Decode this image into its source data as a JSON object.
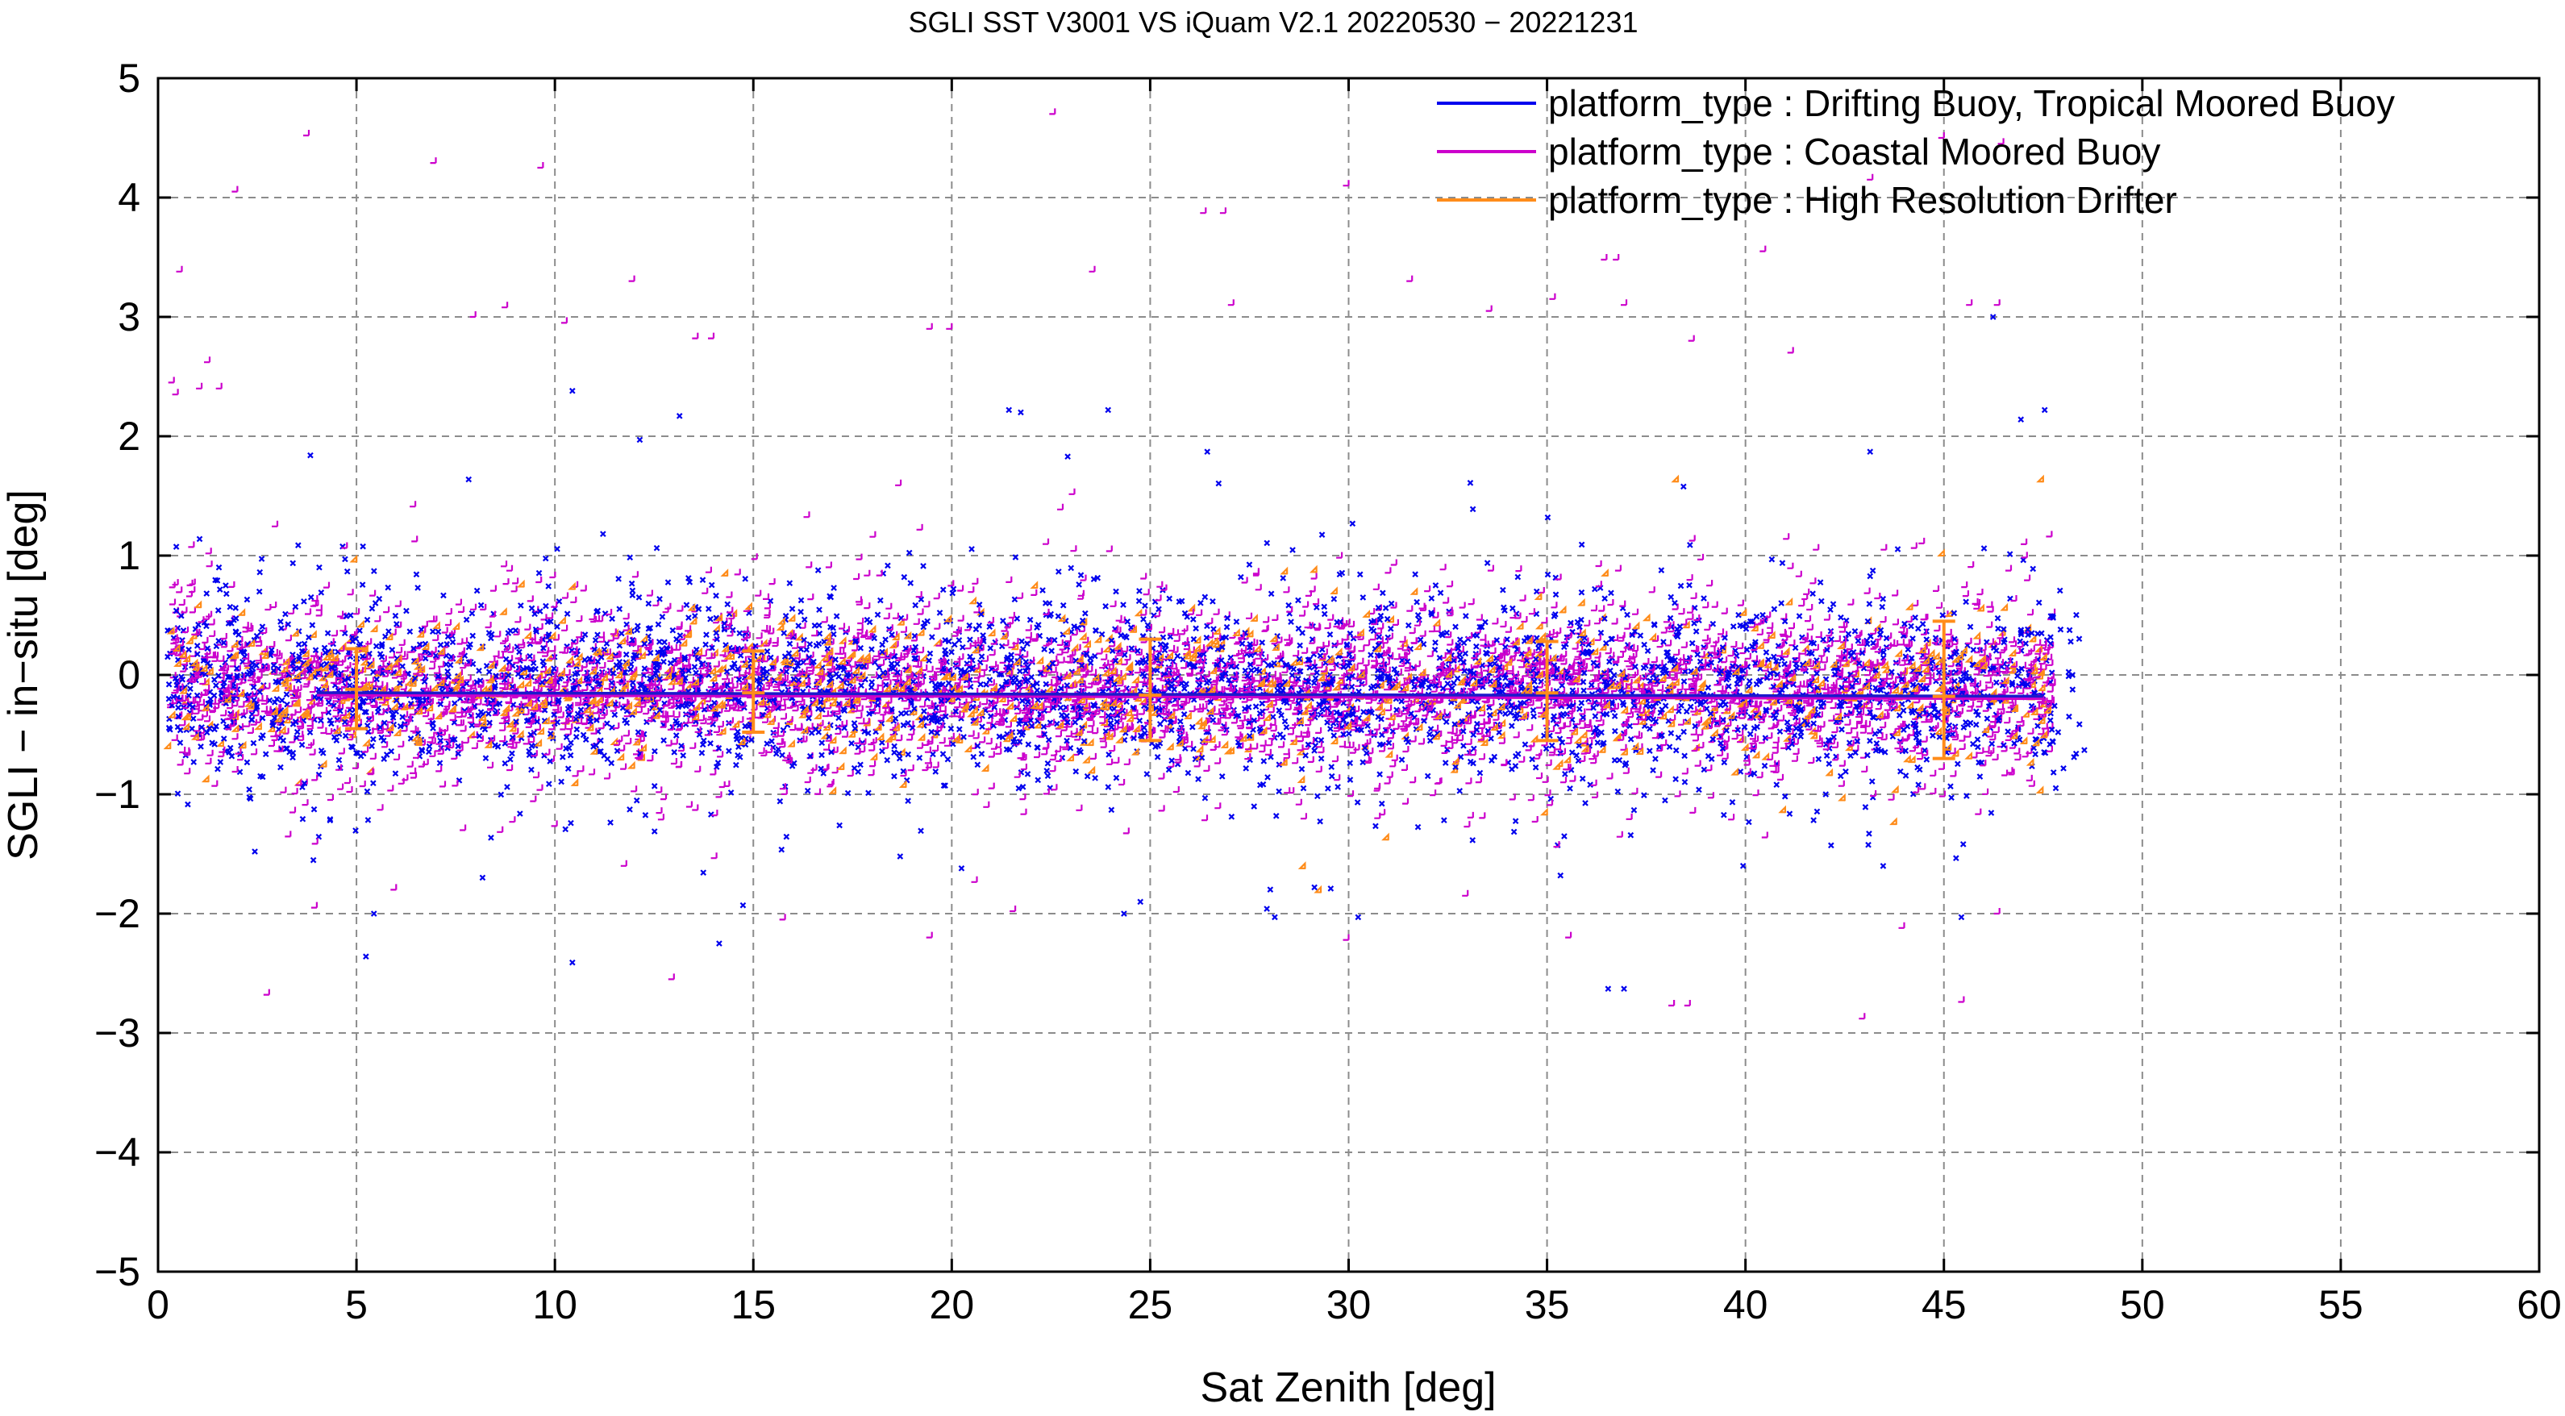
{
  "chart_data": {
    "type": "scatter",
    "title": "SGLI SST V3001 VS iQuam V2.1 20220530 − 20221231",
    "xlabel": "Sat Zenith [deg]",
    "ylabel": "SGLI − in−situ [deg]",
    "xlim": [
      0,
      60
    ],
    "ylim": [
      -5,
      5
    ],
    "xticks": [
      0,
      5,
      10,
      15,
      20,
      25,
      30,
      35,
      40,
      45,
      50,
      55,
      60
    ],
    "yticks": [
      -5,
      -4,
      -3,
      -2,
      -1,
      0,
      1,
      2,
      3,
      4,
      5
    ],
    "xtick_labels": [
      "0",
      "5",
      "10",
      "15",
      "20",
      "25",
      "30",
      "35",
      "40",
      "45",
      "50",
      "55",
      "60"
    ],
    "ytick_labels": [
      "−5",
      "−4",
      "−3",
      "−2",
      "−1",
      "0",
      "1",
      "2",
      "3",
      "4",
      "5"
    ],
    "grid": true,
    "legend_position": "top-right",
    "series": [
      {
        "name": "platform_type : Drifting Buoy, Tropical Moored Buoy",
        "color": "#0000ee",
        "marker": "x",
        "x_range": [
          0.3,
          48.5
        ],
        "spread": 0.55,
        "points": [
          [
            3.9,
            1.82
          ],
          [
            5.5,
            -2.02
          ],
          [
            5.3,
            -2.38
          ],
          [
            10.5,
            2.36
          ],
          [
            10.5,
            -2.43
          ],
          [
            13.2,
            2.15
          ],
          [
            14.2,
            -2.27
          ],
          [
            14.8,
            -1.95
          ],
          [
            21.5,
            2.2
          ],
          [
            21.8,
            2.18
          ],
          [
            24.0,
            2.2
          ],
          [
            24.4,
            -2.02
          ],
          [
            26.5,
            1.85
          ],
          [
            28.0,
            -1.98
          ],
          [
            29.2,
            -1.8
          ],
          [
            36.6,
            -2.65
          ],
          [
            37.0,
            -2.65
          ],
          [
            40.0,
            -1.62
          ],
          [
            43.2,
            1.85
          ],
          [
            45.5,
            -2.05
          ],
          [
            46.3,
            2.98
          ],
          [
            47.0,
            2.12
          ],
          [
            47.6,
            2.2
          ],
          [
            48.0,
            0.36
          ],
          [
            48.3,
            -0.02
          ],
          [
            48.6,
            -0.65
          ],
          [
            28.2,
            -2.05
          ],
          [
            12.2,
            1.95
          ],
          [
            2.5,
            -1.5
          ],
          [
            30.3,
            -2.05
          ]
        ]
      },
      {
        "name": "platform_type : Coastal Moored Buoy",
        "color": "#cc00cc",
        "marker": "+",
        "x_range": [
          0.3,
          47.8
        ],
        "spread": 0.5,
        "points": [
          [
            3.8,
            4.52
          ],
          [
            2.0,
            4.05
          ],
          [
            7.0,
            4.29
          ],
          [
            9.7,
            4.25
          ],
          [
            22.6,
            4.7
          ],
          [
            30.0,
            4.1
          ],
          [
            26.4,
            3.87
          ],
          [
            26.9,
            3.87
          ],
          [
            45.0,
            4.5
          ],
          [
            46.5,
            4.45
          ],
          [
            0.6,
            3.38
          ],
          [
            0.4,
            2.45
          ],
          [
            0.5,
            2.35
          ],
          [
            1.3,
            2.62
          ],
          [
            1.1,
            2.4
          ],
          [
            1.6,
            2.4
          ],
          [
            8.0,
            3.0
          ],
          [
            8.8,
            3.08
          ],
          [
            10.3,
            2.95
          ],
          [
            12.0,
            3.3
          ],
          [
            13.6,
            2.82
          ],
          [
            14.0,
            2.82
          ],
          [
            23.6,
            3.38
          ],
          [
            19.5,
            2.9
          ],
          [
            20.0,
            2.9
          ],
          [
            27.1,
            3.1
          ],
          [
            31.6,
            3.3
          ],
          [
            33.6,
            3.05
          ],
          [
            35.2,
            3.15
          ],
          [
            36.5,
            3.48
          ],
          [
            36.8,
            3.48
          ],
          [
            37.0,
            3.1
          ],
          [
            38.7,
            2.8
          ],
          [
            40.5,
            3.55
          ],
          [
            43.2,
            4.15
          ],
          [
            45.7,
            3.1
          ],
          [
            46.4,
            3.1
          ],
          [
            41.2,
            2.7
          ],
          [
            2.8,
            -2.68
          ],
          [
            13.0,
            -2.55
          ],
          [
            15.8,
            -2.05
          ],
          [
            19.5,
            -2.2
          ],
          [
            11.8,
            -1.6
          ],
          [
            35.6,
            -2.2
          ],
          [
            38.2,
            -2.77
          ],
          [
            38.6,
            -2.77
          ],
          [
            43.0,
            -2.88
          ],
          [
            45.5,
            -2.74
          ],
          [
            30.0,
            -2.22
          ],
          [
            33.0,
            -1.85
          ],
          [
            21.6,
            -1.98
          ],
          [
            4.0,
            -1.95
          ],
          [
            6.0,
            -1.8
          ],
          [
            44.0,
            -2.12
          ],
          [
            46.4,
            -2.0
          ]
        ]
      },
      {
        "name": "platform_type : High Resolution Drifter",
        "color": "#ff8c1a",
        "marker": "diamond",
        "x_range": [
          0.3,
          47.8
        ],
        "spread": 0.35,
        "points": [
          [
            28.9,
            -1.62
          ],
          [
            29.3,
            -1.82
          ],
          [
            47.5,
            1.62
          ],
          [
            38.3,
            1.62
          ],
          [
            41.0,
            -1.15
          ],
          [
            42.5,
            -1.05
          ],
          [
            35.0,
            -1.17
          ],
          [
            31.0,
            -1.38
          ],
          [
            5.0,
            0.95
          ],
          [
            45.0,
            1.0
          ],
          [
            44.2,
            0.55
          ],
          [
            10.5,
            0.72
          ],
          [
            12.0,
            -0.78
          ],
          [
            20.6,
            0.6
          ],
          [
            43.8,
            -1.25
          ]
        ],
        "mean_line": {
          "x": [
            4.0,
            47.5
          ],
          "y": [
            -0.15,
            -0.18
          ]
        },
        "error_bars": [
          {
            "x": 5,
            "mean": -0.12,
            "lower": -0.45,
            "upper": 0.22
          },
          {
            "x": 15,
            "mean": -0.15,
            "lower": -0.48,
            "upper": 0.2
          },
          {
            "x": 25,
            "mean": -0.17,
            "lower": -0.55,
            "upper": 0.3
          },
          {
            "x": 35,
            "mean": -0.15,
            "lower": -0.55,
            "upper": 0.28
          },
          {
            "x": 45,
            "mean": -0.18,
            "lower": -0.7,
            "upper": 0.45
          }
        ]
      }
    ],
    "core_cloud": {
      "mean": -0.12,
      "x_range": [
        0.3,
        47.8
      ],
      "colors": [
        "#0000ee",
        "#cc00cc",
        "#ff8c1a"
      ]
    }
  }
}
